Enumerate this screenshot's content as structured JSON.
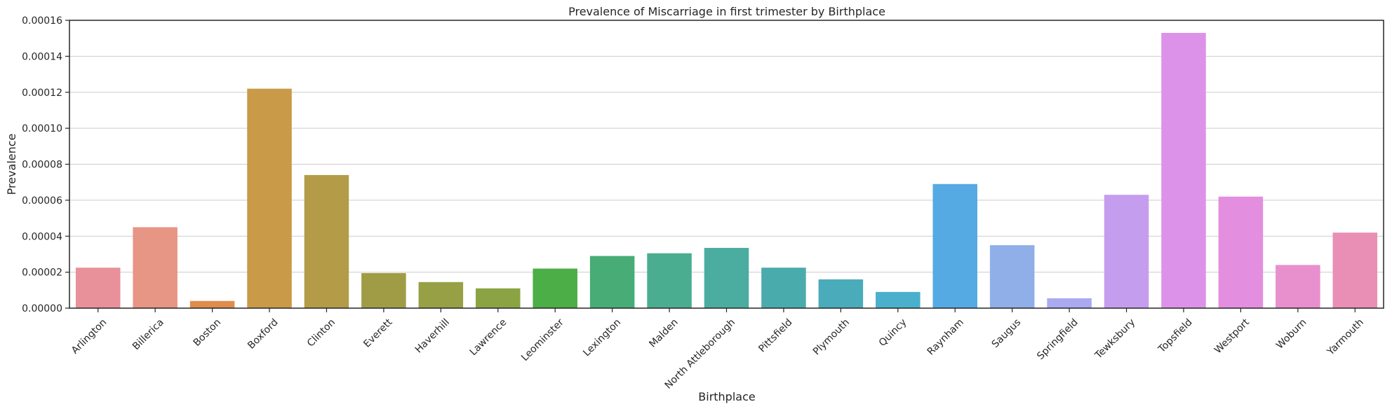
{
  "chart_data": {
    "type": "bar",
    "title": "Prevalence of Miscarriage in first trimester by Birthplace",
    "xlabel": "Birthplace",
    "ylabel": "Prevalence",
    "ylim": [
      0,
      0.00016
    ],
    "yticks": [
      "0.00000",
      "0.00002",
      "0.00004",
      "0.00006",
      "0.00008",
      "0.00010",
      "0.00012",
      "0.00014",
      "0.00016"
    ],
    "grid": "horizontal",
    "categories": [
      "Arlington",
      "Billerica",
      "Boston",
      "Boxford",
      "Clinton",
      "Everett",
      "Haverhill",
      "Lawrence",
      "Leominster",
      "Lexington",
      "Malden",
      "North Attleborough",
      "Pittsfield",
      "Plymouth",
      "Quincy",
      "Raynham",
      "Saugus",
      "Springfield",
      "Tewksbury",
      "Topsfield",
      "Westport",
      "Woburn",
      "Yarmouth"
    ],
    "values": [
      2.25e-05,
      4.5e-05,
      4e-06,
      0.000122,
      7.4e-05,
      1.95e-05,
      1.45e-05,
      1.1e-05,
      2.2e-05,
      2.9e-05,
      3.05e-05,
      3.35e-05,
      2.25e-05,
      1.6e-05,
      9e-06,
      6.9e-05,
      3.5e-05,
      5.5e-06,
      6.3e-05,
      0.000153,
      6.2e-05,
      2.4e-05,
      4.2e-05
    ],
    "colors": [
      "#e8919b",
      "#e79585",
      "#e08c4d",
      "#c99a47",
      "#b39b48",
      "#a09c45",
      "#97a044",
      "#8ba443",
      "#4bae46",
      "#48ac76",
      "#4aad8f",
      "#4aad9f",
      "#4aabad",
      "#4aabbb",
      "#4ab0cc",
      "#55aae3",
      "#90aee8",
      "#aaaaf0",
      "#c59def",
      "#dd92e9",
      "#e48ee0",
      "#e88fce",
      "#e98fb5"
    ]
  }
}
